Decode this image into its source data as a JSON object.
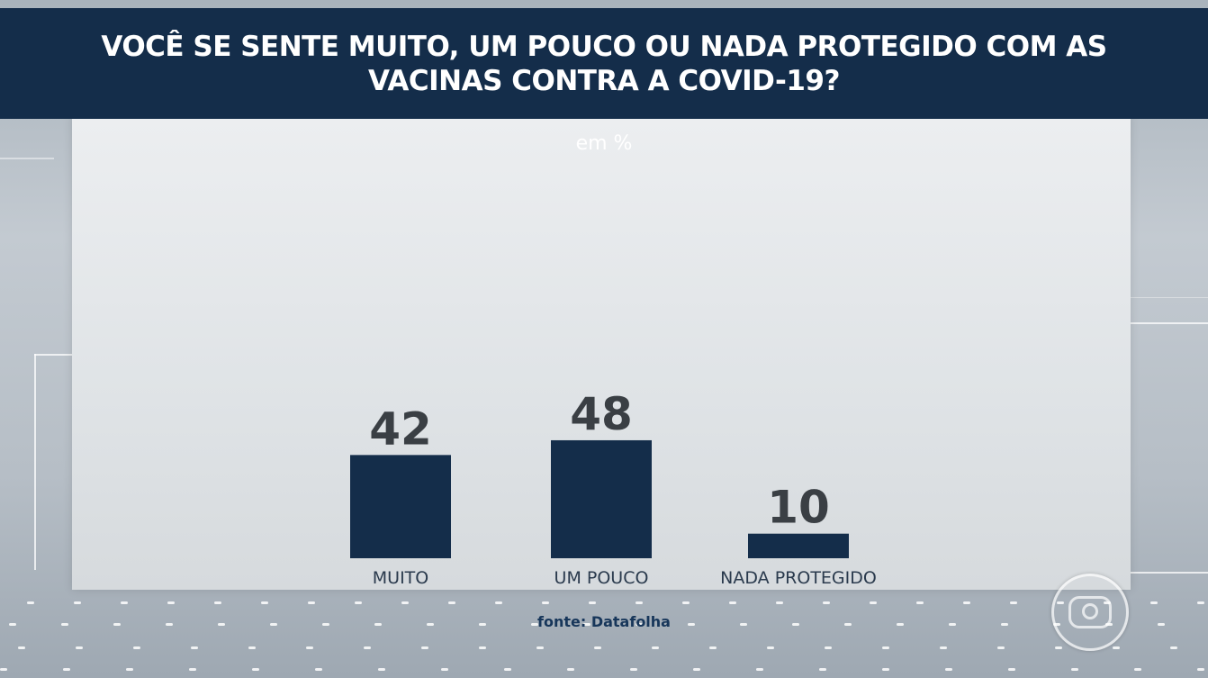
{
  "header": {
    "title": "VOCÊ SE SENTE MUITO, UM POUCO OU NADA PROTEGIDO COM AS VACINAS CONTRA A COVID-19?"
  },
  "chart_data": {
    "type": "bar",
    "unit_label": "em %",
    "categories": [
      "MUITO",
      "UM POUCO",
      "NADA PROTEGIDO"
    ],
    "values": [
      42,
      48,
      10
    ],
    "bar_color": "#142d4a",
    "grid": false,
    "ylim": [
      0,
      100
    ]
  },
  "footer": {
    "source": "fonte: Datafolha"
  },
  "colors": {
    "header_bg": "#142d4a",
    "value_text": "#3a3f44",
    "label_text": "#2a3a4d"
  },
  "logo": {
    "icon": "globo-logo-icon"
  }
}
